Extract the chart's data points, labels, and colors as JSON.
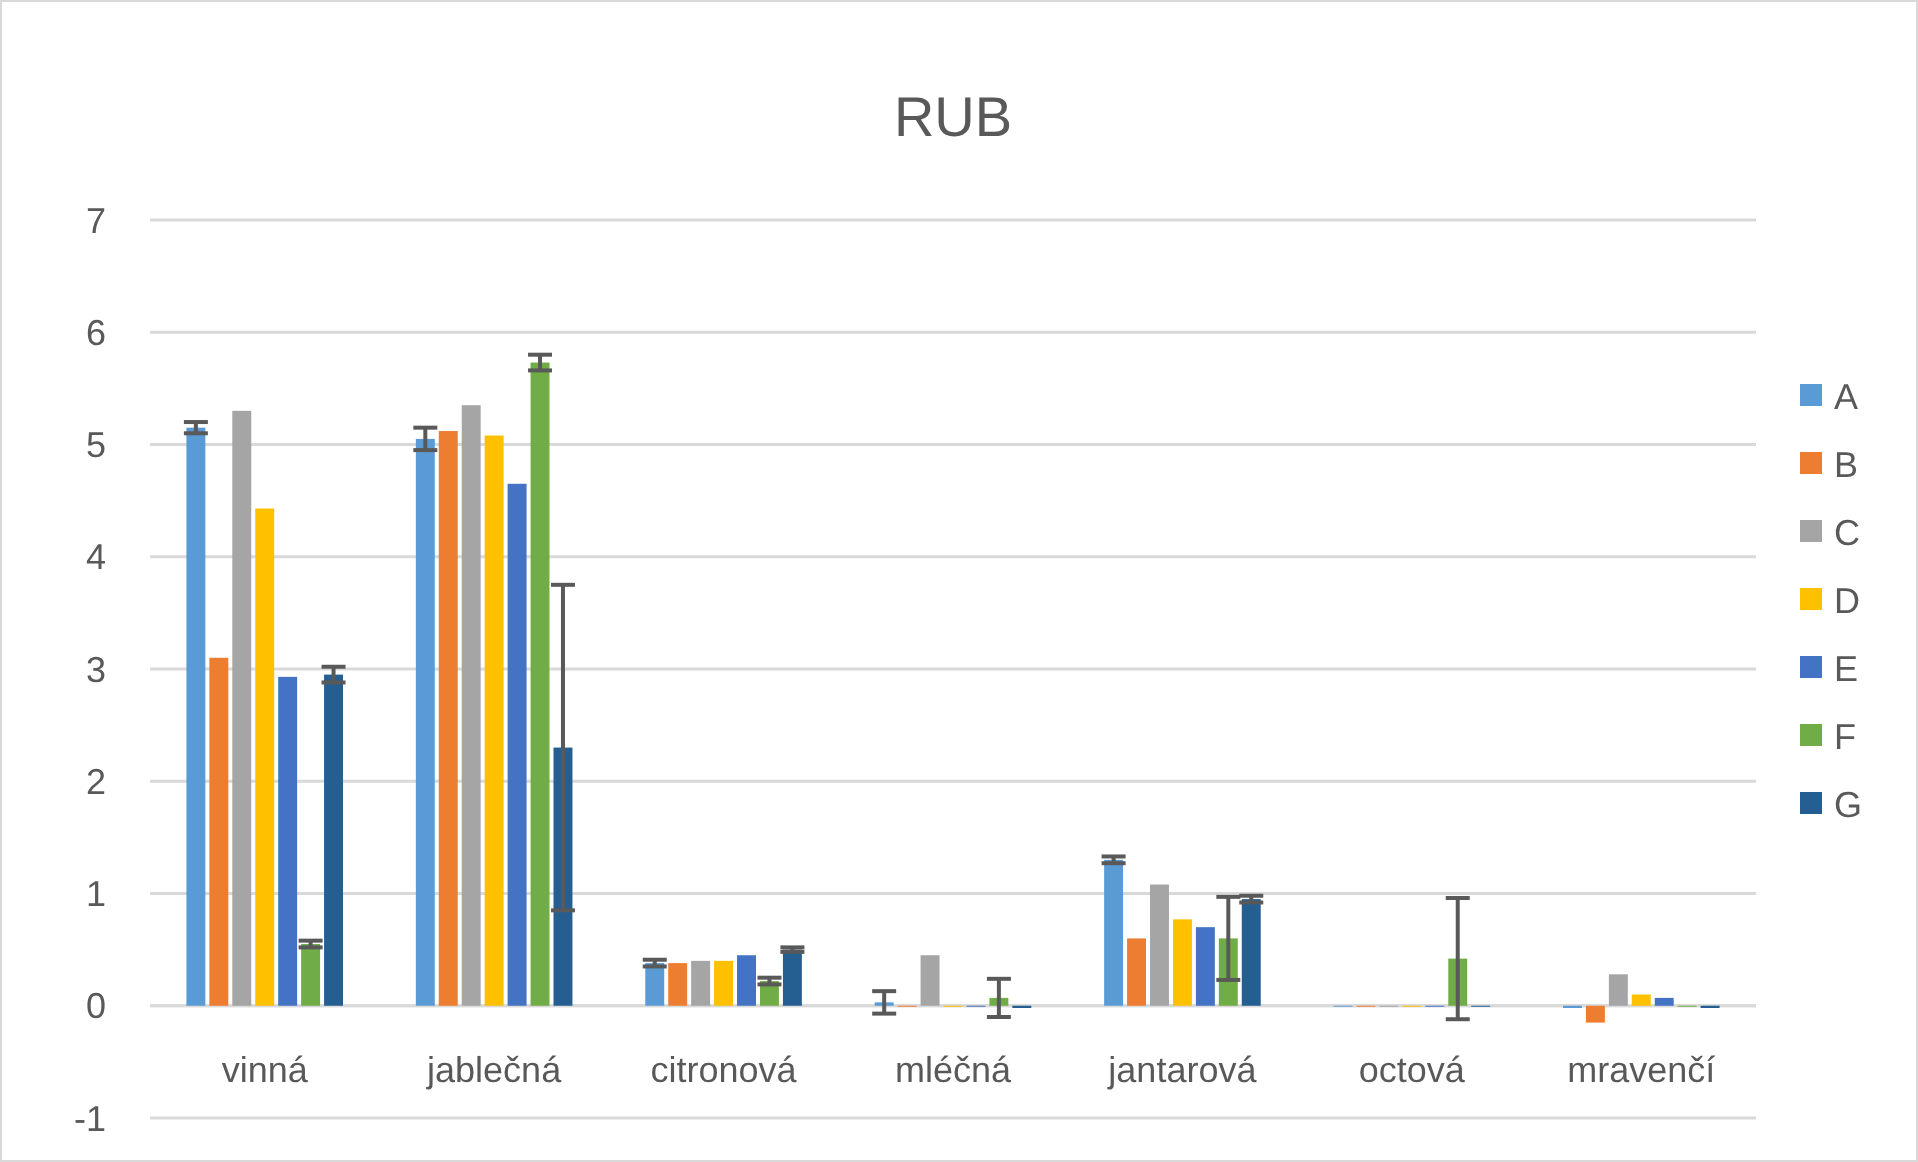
{
  "chart_data": {
    "type": "bar",
    "title": "RUB",
    "categories": [
      "vinná",
      "jablečná",
      "citronová",
      "mléčná",
      "jantarová",
      "octová",
      "mravenčí"
    ],
    "series": [
      {
        "name": "A",
        "color": "#5b9bd5",
        "values": [
          5.15,
          5.05,
          0.38,
          0.03,
          1.3,
          0,
          -0.02
        ],
        "errors": [
          0.05,
          0.1,
          0.03,
          0.1,
          0.03,
          null,
          null
        ]
      },
      {
        "name": "B",
        "color": "#ed7d31",
        "values": [
          3.1,
          5.12,
          0.38,
          0,
          0.6,
          0,
          -0.15
        ]
      },
      {
        "name": "C",
        "color": "#a5a5a5",
        "values": [
          5.3,
          5.35,
          0.4,
          0.45,
          1.08,
          0,
          0.28
        ]
      },
      {
        "name": "D",
        "color": "#ffc000",
        "values": [
          4.43,
          5.08,
          0.4,
          0,
          0.77,
          0,
          0.1
        ]
      },
      {
        "name": "E",
        "color": "#4472c4",
        "values": [
          2.93,
          4.65,
          0.45,
          0,
          0.7,
          0,
          0.07
        ]
      },
      {
        "name": "F",
        "color": "#70ad47",
        "values": [
          0.55,
          5.73,
          0.22,
          0.07,
          0.6,
          0.42,
          0
        ],
        "errors": [
          0.03,
          0.07,
          0.03,
          0.17,
          0.37,
          0.54,
          null
        ]
      },
      {
        "name": "G",
        "color": "#255e91",
        "values": [
          2.95,
          2.3,
          0.5,
          -0.02,
          0.95,
          0,
          -0.02
        ],
        "errors": [
          0.07,
          1.45,
          0.02,
          null,
          0.03,
          null,
          null
        ]
      }
    ],
    "ylim": [
      -1,
      7
    ],
    "yticks": [
      -1,
      0,
      1,
      2,
      3,
      4,
      5,
      6,
      7
    ],
    "grid": "y",
    "legend": "right"
  }
}
